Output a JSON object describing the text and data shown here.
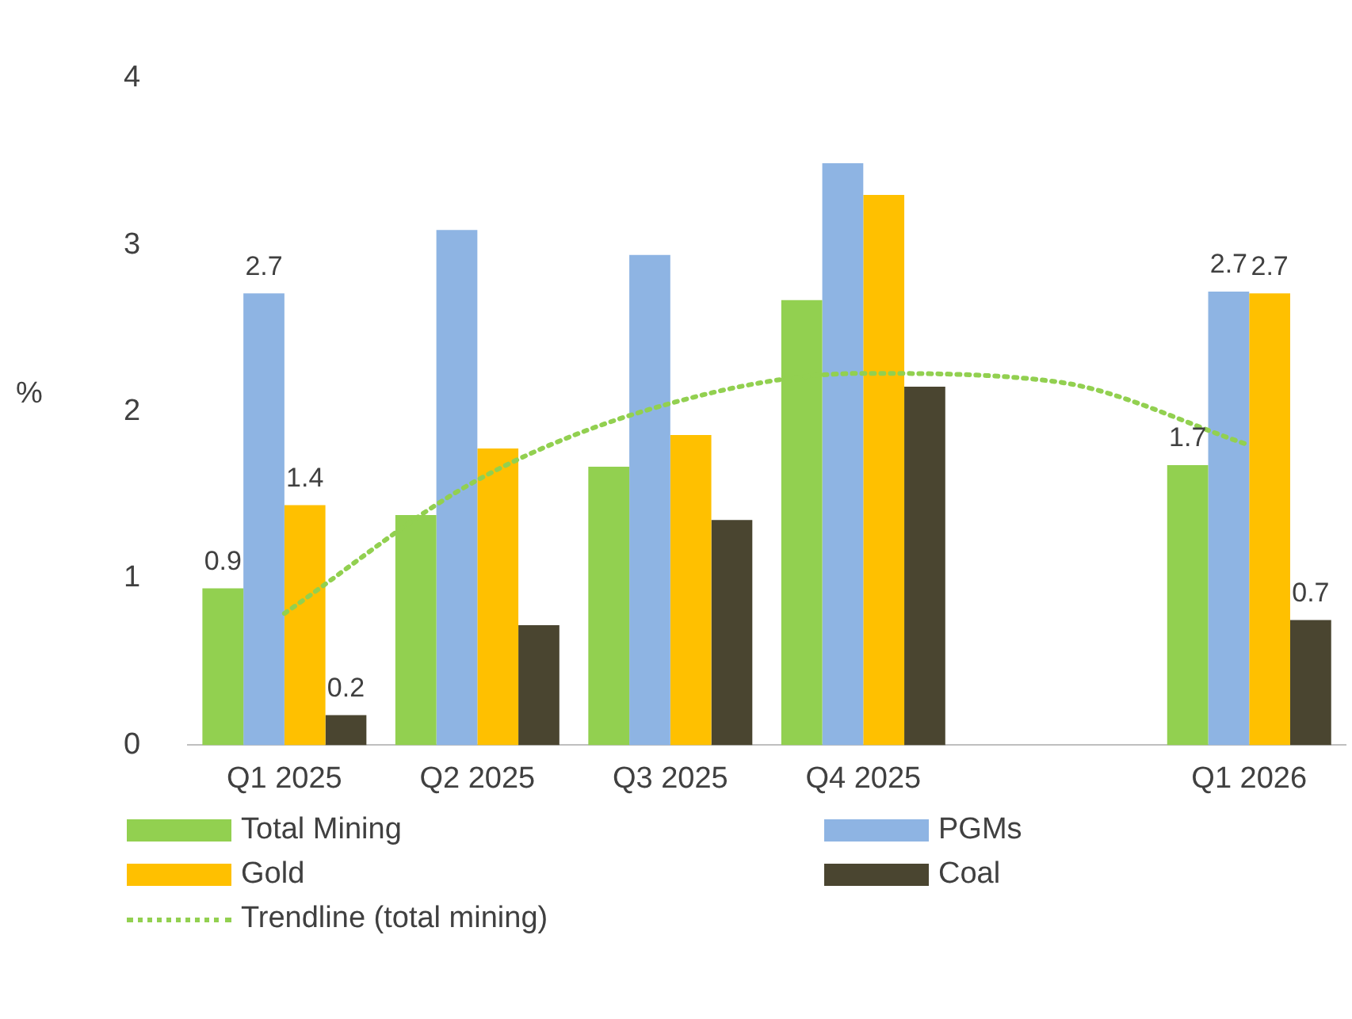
{
  "chart_data": {
    "type": "bar",
    "ylabel": "%",
    "categories": [
      "Q1 2025",
      "Q2 2025",
      "Q3 2025",
      "Q4 2025",
      null,
      "Q1 2026"
    ],
    "ylim": [
      0,
      4
    ],
    "yticks": [
      0,
      1,
      2,
      3,
      4
    ],
    "grid": false,
    "legend": "bottom",
    "series": [
      {
        "name": "Total Mining",
        "color": "#92d050",
        "values": [
          0.94,
          1.38,
          1.67,
          2.67,
          null,
          1.68
        ],
        "value_labels": [
          "0.9",
          null,
          null,
          null,
          null,
          "1.7"
        ]
      },
      {
        "name": "PGMs",
        "color": "#8eb4e3",
        "values": [
          2.71,
          3.09,
          2.94,
          3.49,
          null,
          2.72
        ],
        "value_labels": [
          "2.7",
          null,
          null,
          null,
          null,
          "2.7"
        ]
      },
      {
        "name": "Gold",
        "color": "#ffc000",
        "values": [
          1.44,
          1.78,
          1.86,
          3.3,
          null,
          2.71
        ],
        "value_labels": [
          "1.4",
          null,
          null,
          null,
          null,
          "2.7"
        ]
      },
      {
        "name": "Coal",
        "color": "#4a4530",
        "values": [
          0.18,
          0.72,
          1.35,
          2.15,
          null,
          0.75
        ],
        "value_labels": [
          "0.2",
          null,
          null,
          null,
          null,
          "0.7"
        ]
      },
      {
        "name": "Trendline (total mining)",
        "type": "line",
        "color": "#92d050",
        "line_style": "dotted",
        "marker": "none",
        "values": [
          0.79,
          1.59,
          2.05,
          2.23,
          2.18,
          1.8
        ]
      }
    ]
  }
}
